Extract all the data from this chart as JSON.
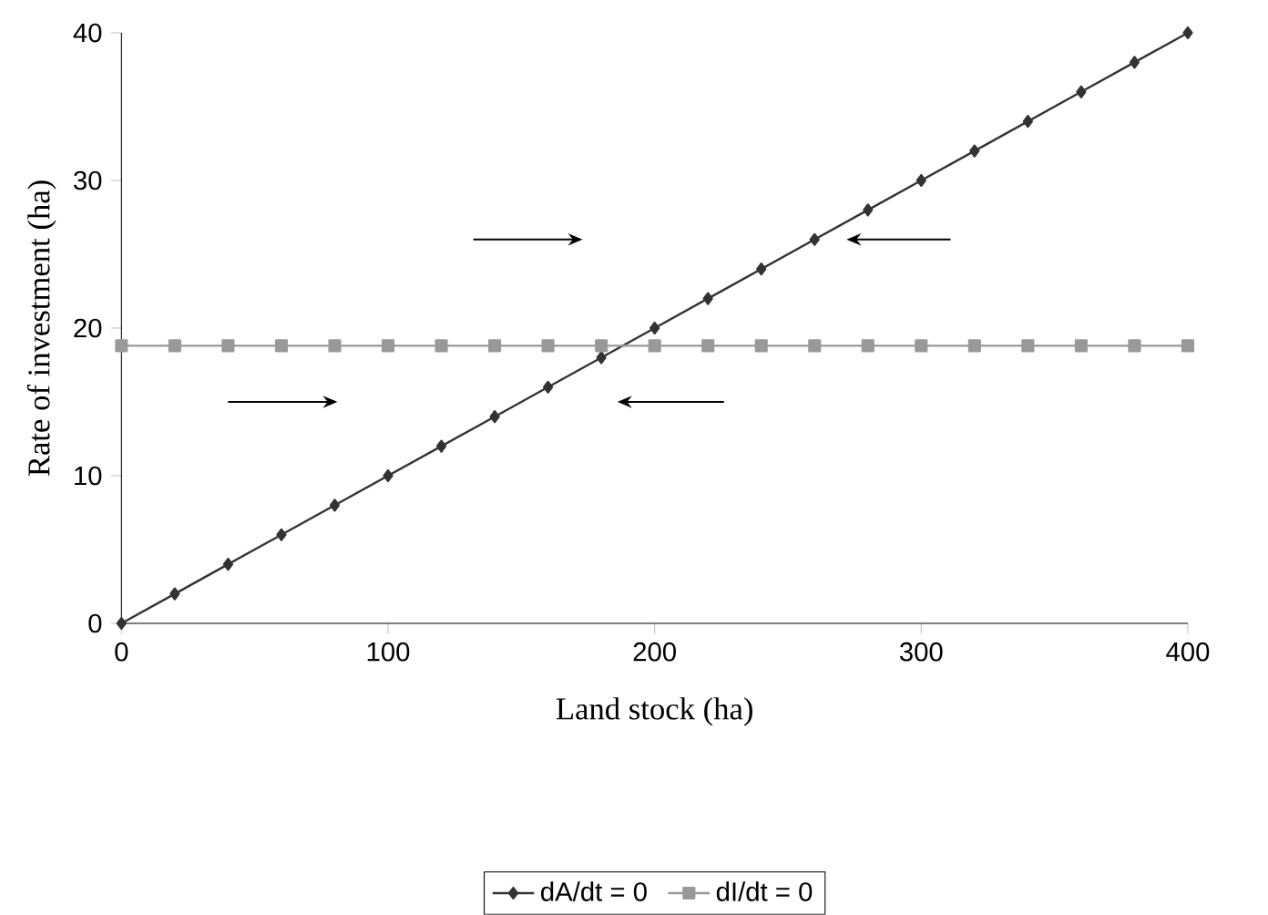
{
  "chart_data": {
    "type": "line",
    "xlabel": "Land stock (ha)",
    "ylabel": "Rate of investment (ha)",
    "x": [
      0,
      20,
      40,
      60,
      80,
      100,
      120,
      140,
      160,
      180,
      200,
      220,
      240,
      260,
      280,
      300,
      320,
      340,
      360,
      380,
      400
    ],
    "series": [
      {
        "name": "dA/dt = 0",
        "color": "#333333",
        "marker": "diamond",
        "values": [
          0,
          2,
          4,
          6,
          8,
          10,
          12,
          14,
          16,
          18,
          20,
          22,
          24,
          26,
          28,
          30,
          32,
          34,
          36,
          38,
          40
        ]
      },
      {
        "name": "dI/dt = 0",
        "color": "#999999",
        "marker": "square",
        "values": [
          18.8,
          18.8,
          18.8,
          18.8,
          18.8,
          18.8,
          18.8,
          18.8,
          18.8,
          18.8,
          18.8,
          18.8,
          18.8,
          18.8,
          18.8,
          18.8,
          18.8,
          18.8,
          18.8,
          18.8,
          18.8
        ]
      }
    ],
    "xlim": [
      0,
      400
    ],
    "xticks": [
      0,
      100,
      200,
      300,
      400
    ],
    "ylim": [
      0,
      40
    ],
    "yticks": [
      0,
      10,
      20,
      30,
      40
    ],
    "grid": false,
    "legend": "bottom",
    "line_style": "solid"
  }
}
